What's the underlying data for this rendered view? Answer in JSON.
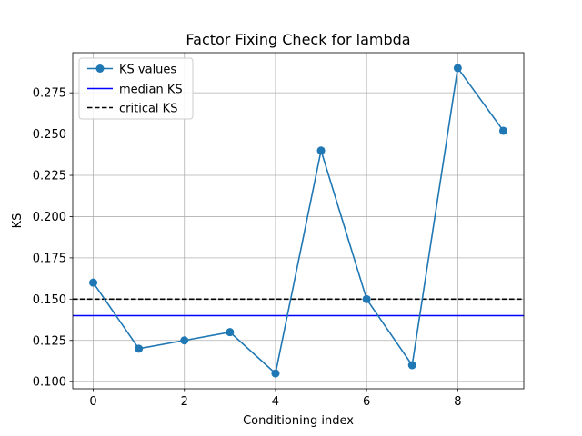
{
  "chart_data": {
    "type": "line",
    "title": "Factor Fixing Check for lambda",
    "xlabel": "Conditioning index",
    "ylabel": "KS",
    "xlim": [
      -0.45,
      9.45
    ],
    "ylim": [
      0.0957,
      0.2993
    ],
    "x_ticks": [
      0,
      2,
      4,
      6,
      8
    ],
    "y_ticks": [
      0.1,
      0.125,
      0.15,
      0.175,
      0.2,
      0.225,
      0.25,
      0.275
    ],
    "grid": true,
    "legend_position": "top-left",
    "series": [
      {
        "name": "KS values",
        "color": "#1f77b4",
        "marker": "circle",
        "x": [
          0,
          1,
          2,
          3,
          4,
          5,
          6,
          7,
          8,
          9
        ],
        "y": [
          0.16,
          0.12,
          0.125,
          0.13,
          0.105,
          0.24,
          0.15,
          0.11,
          0.29,
          0.252
        ]
      }
    ],
    "reference_lines": [
      {
        "name": "median KS",
        "y": 0.14,
        "color": "#0000ff",
        "style": "solid"
      },
      {
        "name": "critical KS",
        "y": 0.15,
        "color": "#000000",
        "style": "dashed"
      }
    ]
  }
}
